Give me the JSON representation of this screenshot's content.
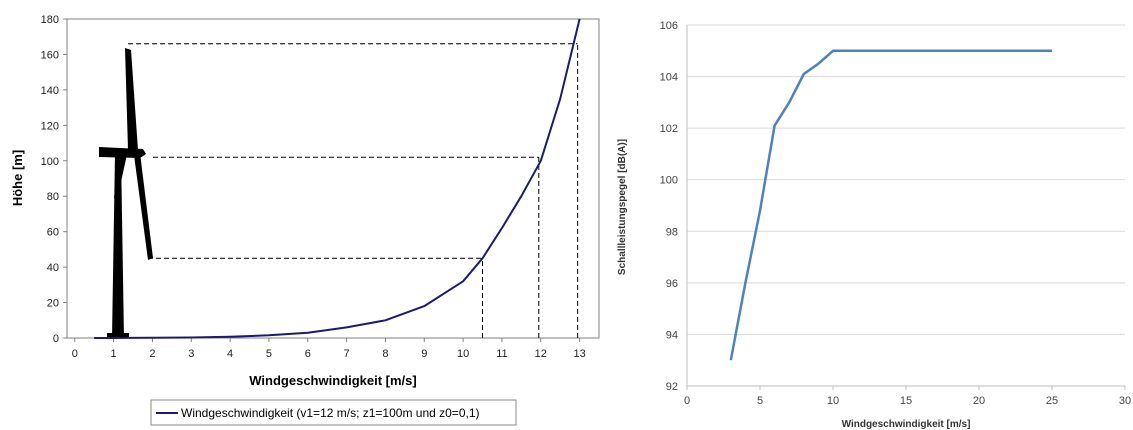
{
  "chart_data": [
    {
      "type": "line",
      "title": "",
      "xlabel": "Windgeschwindigkeit [m/s]",
      "ylabel": "Höhe [m]",
      "xlim": [
        -0.2,
        13.5
      ],
      "ylim": [
        0,
        180
      ],
      "xticks": [
        "0",
        "1",
        "2",
        "3",
        "4",
        "5",
        "6",
        "7",
        "8",
        "9",
        "10",
        "11",
        "12",
        "13"
      ],
      "yticks": [
        "0",
        "20",
        "40",
        "60",
        "80",
        "100",
        "120",
        "140",
        "160",
        "180"
      ],
      "grid": false,
      "legend_position": "bottom",
      "series": [
        {
          "name": "Windgeschwindigkeit (v1=12 m/s; z1=100m und z0=0,1)",
          "color": "#1c1c6e",
          "x": [
            0.5,
            1,
            2,
            3,
            4,
            5,
            6,
            7,
            8,
            9,
            10,
            10.5,
            11,
            11.5,
            12,
            12.5,
            13
          ],
          "y": [
            0,
            0,
            0.1,
            0.3,
            0.7,
            1.5,
            3,
            6,
            10,
            18,
            32,
            45,
            62,
            80,
            100,
            135,
            180
          ]
        }
      ],
      "reference_lines": [
        {
          "x": 10.5,
          "y": 45
        },
        {
          "x": 11.95,
          "y": 102
        },
        {
          "x": 12.95,
          "y": 166
        }
      ],
      "decoration": "wind-turbine-silhouette"
    },
    {
      "type": "line",
      "title": "",
      "xlabel": "Windgeschwindigkeit [m/s]",
      "ylabel": "Schallleistungspegel [dB(A)]",
      "xlim": [
        0,
        30
      ],
      "ylim": [
        92,
        106
      ],
      "xticks": [
        "0",
        "5",
        "10",
        "15",
        "20",
        "25",
        "30"
      ],
      "yticks": [
        "92",
        "94",
        "96",
        "98",
        "100",
        "102",
        "104",
        "106"
      ],
      "grid": true,
      "series": [
        {
          "color": "#4f81bd",
          "x": [
            3,
            4,
            5,
            6,
            7,
            8,
            9,
            10,
            25
          ],
          "y": [
            93,
            96,
            98.8,
            102.1,
            103,
            104.1,
            104.5,
            105,
            105
          ]
        }
      ]
    }
  ]
}
